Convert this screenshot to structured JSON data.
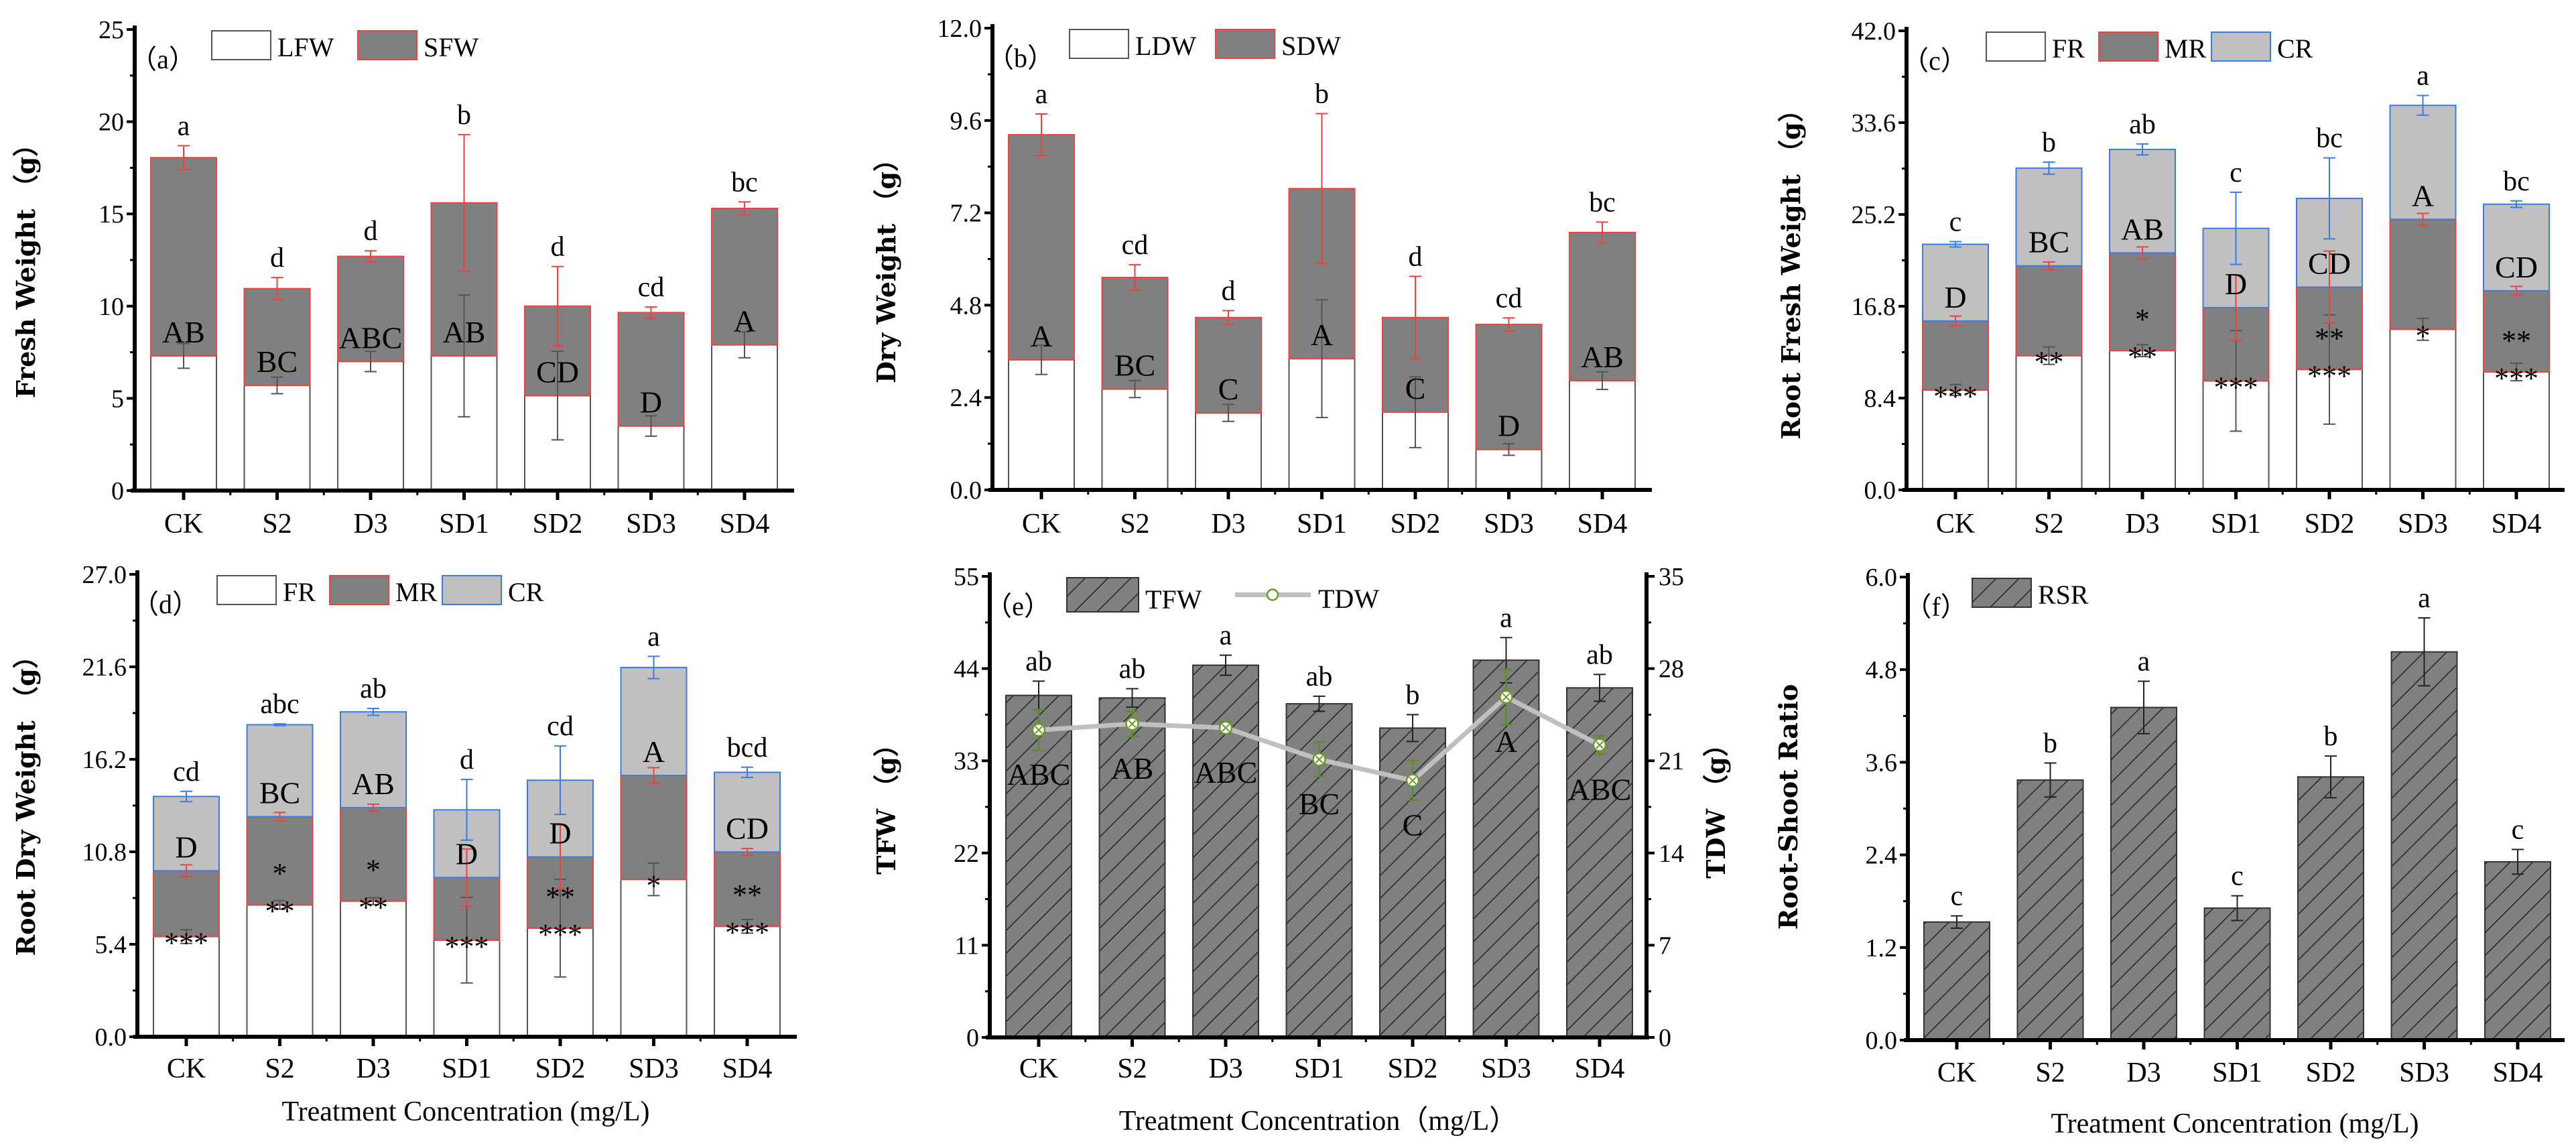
{
  "chart_data": [
    {
      "type": "bar",
      "stacked": true,
      "panel_label": "（a）",
      "ylabel": "Fresh Weight （g）",
      "xlabel": "",
      "ylim": [
        0,
        25
      ],
      "yticks": [
        "0",
        "5",
        "10",
        "15",
        "20",
        "25"
      ],
      "categories": [
        "CK",
        "S2",
        "D3",
        "SD1",
        "SD2",
        "SD3",
        "SD4"
      ],
      "series": [
        {
          "name": "LFW",
          "values": [
            7.3,
            5.7,
            7.0,
            7.3,
            5.15,
            3.5,
            7.9
          ],
          "errors": [
            0.67,
            0.45,
            0.55,
            3.3,
            2.4,
            0.55,
            0.7
          ],
          "color": "#ffffff",
          "edge": "#555555",
          "err_color": "#555555"
        },
        {
          "name": "SFW",
          "values": [
            10.75,
            5.25,
            5.7,
            8.3,
            4.85,
            6.15,
            7.4
          ],
          "errors": [
            0.65,
            0.6,
            0.3,
            3.7,
            2.15,
            0.3,
            0.35
          ],
          "color": "#808080",
          "edge": "#f04040",
          "err_color": "#f04040"
        }
      ],
      "letters_lower": [
        "a",
        "d",
        "d",
        "b",
        "d",
        "cd",
        "bc"
      ],
      "letters_upper": [
        "AB",
        "BC",
        "ABC",
        "AB",
        "CD",
        "D",
        "A"
      ]
    },
    {
      "type": "bar",
      "stacked": true,
      "panel_label": "（b）",
      "ylabel": "Dry Weight （g）",
      "xlabel": "",
      "ylim": [
        0,
        12
      ],
      "yticks": [
        "0.0",
        "2.4",
        "4.8",
        "7.2",
        "9.6",
        "12.0"
      ],
      "categories": [
        "CK",
        "S2",
        "D3",
        "SD1",
        "SD2",
        "SD3",
        "SD4"
      ],
      "series": [
        {
          "name": "LDW",
          "values": [
            3.38,
            2.62,
            2.0,
            3.41,
            2.02,
            1.05,
            2.84
          ],
          "errors": [
            0.38,
            0.22,
            0.22,
            1.53,
            0.92,
            0.15,
            0.23
          ],
          "color": "#ffffff",
          "edge": "#555555",
          "err_color": "#555555"
        },
        {
          "name": "SDW",
          "values": [
            5.85,
            2.9,
            2.48,
            4.42,
            2.46,
            3.25,
            3.85
          ],
          "errors": [
            0.54,
            0.33,
            0.18,
            1.95,
            1.07,
            0.17,
            0.27
          ],
          "color": "#808080",
          "edge": "#f04040",
          "err_color": "#f04040"
        }
      ],
      "letters_lower": [
        "a",
        "cd",
        "d",
        "b",
        "d",
        "cd",
        "bc"
      ],
      "letters_upper": [
        "A",
        "BC",
        "C",
        "A",
        "C",
        "D",
        "AB"
      ]
    },
    {
      "type": "bar",
      "stacked": true,
      "panel_label": "（c）",
      "ylabel": "Root Fresh Weight （g）",
      "xlabel": "",
      "ylim": [
        0,
        42
      ],
      "yticks": [
        "0.0",
        "8.4",
        "16.8",
        "25.2",
        "33.6",
        "42.0"
      ],
      "categories": [
        "CK",
        "S2",
        "D3",
        "SD1",
        "SD2",
        "SD3",
        "SD4"
      ],
      "series": [
        {
          "name": "FR",
          "values": [
            9.14,
            12.28,
            12.74,
            9.97,
            11.02,
            14.69,
            10.79
          ],
          "errors": [
            0.5,
            0.8,
            0.55,
            4.6,
            5.0,
            1.0,
            0.8
          ],
          "color": "#ffffff",
          "edge": "#555555",
          "err_color": "#555555"
        },
        {
          "name": "MR",
          "values": [
            6.31,
            8.22,
            8.94,
            6.7,
            7.53,
            10.06,
            7.43
          ],
          "errors": [
            0.45,
            0.35,
            0.55,
            3.0,
            3.3,
            0.55,
            0.4
          ],
          "color": "#808080",
          "edge": "#f04040",
          "err_color": "#f04040"
        },
        {
          "name": "CR",
          "values": [
            7.02,
            8.94,
            9.47,
            7.26,
            8.12,
            10.43,
            7.92
          ],
          "errors": [
            0.25,
            0.55,
            0.5,
            3.3,
            3.7,
            0.9,
            0.3
          ],
          "color": "#c0c0c0",
          "edge": "#3a7de0",
          "err_color": "#3a7de0"
        }
      ],
      "letters_lower": [
        "c",
        "b",
        "ab",
        "c",
        "bc",
        "a",
        "bc"
      ],
      "letters_upper": [
        "D",
        "BC",
        "AB",
        "D",
        "CD",
        "A",
        "CD"
      ],
      "stars": [
        [
          "***"
        ],
        [
          "**"
        ],
        [
          "*",
          "**"
        ],
        [
          "***"
        ],
        [
          "**",
          "***"
        ],
        [
          "*"
        ],
        [
          "**",
          "***"
        ]
      ]
    },
    {
      "type": "bar",
      "stacked": true,
      "panel_label": "（d）",
      "ylabel": "Root Dry Weight （g）",
      "xlabel": "Treatment Concentration (mg/L)",
      "ylim": [
        0,
        27
      ],
      "yticks": [
        "0.0",
        "5.4",
        "10.8",
        "16.2",
        "21.6",
        "27.0"
      ],
      "categories": [
        "CK",
        "S2",
        "D3",
        "SD1",
        "SD2",
        "SD3",
        "SD4"
      ],
      "series": [
        {
          "name": "FR",
          "values": [
            5.85,
            7.7,
            7.92,
            5.64,
            6.34,
            9.19,
            6.45
          ],
          "errors": [
            0.4,
            0.25,
            0.2,
            2.5,
            2.85,
            0.95,
            0.4
          ],
          "color": "#ffffff",
          "edge": "#555555",
          "err_color": "#555555"
        },
        {
          "name": "MR",
          "values": [
            3.84,
            5.15,
            5.46,
            3.66,
            4.16,
            6.07,
            4.34
          ],
          "errors": [
            0.35,
            0.25,
            0.2,
            1.66,
            1.87,
            0.45,
            0.2
          ],
          "color": "#808080",
          "edge": "#f04040",
          "err_color": "#f04040"
        },
        {
          "name": "CR",
          "values": [
            4.34,
            5.37,
            5.59,
            3.95,
            4.48,
            6.3,
            4.65
          ],
          "errors": [
            0.3,
            0.05,
            0.2,
            1.77,
            2.0,
            0.65,
            0.3
          ],
          "color": "#c0c0c0",
          "edge": "#3a7de0",
          "err_color": "#3a7de0"
        }
      ],
      "letters_lower": [
        "cd",
        "abc",
        "ab",
        "d",
        "cd",
        "a",
        "bcd"
      ],
      "letters_upper": [
        "D",
        "BC",
        "AB",
        "D",
        "D",
        "A",
        "CD"
      ],
      "stars": [
        [
          "***"
        ],
        [
          "*",
          "**"
        ],
        [
          "*",
          "**"
        ],
        [
          "***"
        ],
        [
          "**",
          "***"
        ],
        [
          "*"
        ],
        [
          "**",
          "***"
        ]
      ]
    },
    {
      "type": "bar+line",
      "stacked": false,
      "panel_label": "（e）",
      "ylabel": "TFW （g）",
      "y2label": "TDW （g）",
      "xlabel": "Treatment Concentration（mg/L）",
      "ylim": [
        0,
        55
      ],
      "yticks": [
        "0",
        "11",
        "22",
        "33",
        "44",
        "55"
      ],
      "y2lim": [
        0,
        35
      ],
      "y2ticks": [
        "0",
        "7",
        "14",
        "21",
        "28",
        "35"
      ],
      "categories": [
        "CK",
        "S2",
        "D3",
        "SD1",
        "SD2",
        "SD3",
        "SD4"
      ],
      "series": [
        {
          "name": "TFW",
          "kind": "bar",
          "values": [
            40.8,
            40.5,
            44.4,
            39.8,
            36.9,
            45.0,
            41.7
          ],
          "errors": [
            1.7,
            1.1,
            1.2,
            0.9,
            1.6,
            2.7,
            1.6
          ],
          "color": "#808080",
          "edge": "#333333",
          "err_color": "#222222"
        },
        {
          "name": "TDW",
          "kind": "line",
          "axis": "right",
          "values": [
            23.34,
            23.8,
            23.5,
            21.1,
            19.5,
            25.84,
            22.2
          ],
          "errors": [
            1.55,
            0.95,
            0.45,
            1.3,
            1.5,
            2.1,
            0.7
          ],
          "color": "#c0c0c0",
          "marker_color": "#6b9a2a",
          "err_color": "#5b8c2a"
        }
      ],
      "letters_lower": [
        "ab",
        "ab",
        "a",
        "ab",
        "b",
        "a",
        "ab"
      ],
      "letters_upper": [
        "ABC",
        "AB",
        "ABC",
        "BC",
        "C",
        "A",
        "ABC"
      ]
    },
    {
      "type": "bar",
      "stacked": false,
      "panel_label": "（f）",
      "ylabel": "Root-Shoot Ratio",
      "xlabel": "Treatment Concentration (mg/L)",
      "ylim": [
        0,
        6
      ],
      "yticks": [
        "0.0",
        "1.2",
        "2.4",
        "3.6",
        "4.8",
        "6.0"
      ],
      "categories": [
        "CK",
        "S2",
        "D3",
        "SD1",
        "SD2",
        "SD3",
        "SD4"
      ],
      "series": [
        {
          "name": "RSR",
          "kind": "bar",
          "values": [
            1.53,
            3.37,
            4.31,
            1.71,
            3.41,
            5.03,
            2.31
          ],
          "errors": [
            0.08,
            0.22,
            0.34,
            0.16,
            0.27,
            0.44,
            0.16
          ],
          "color": "#808080",
          "edge": "#333333",
          "err_color": "#222222"
        }
      ],
      "letters_lower": [
        "c",
        "b",
        "a",
        "c",
        "b",
        "a",
        "c"
      ]
    }
  ]
}
